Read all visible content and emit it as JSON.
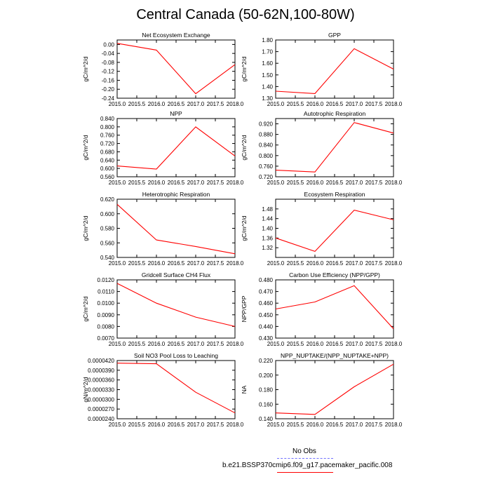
{
  "figure": {
    "title": "Central Canada (50-62N,100-80W)"
  },
  "legend": {
    "obs_label": "No Obs",
    "model_label": "b.e21.BSSP370cmip6.f09_g17.pacemaker_pacific.008",
    "obs_color": "#7070ff",
    "model_color": "#ff0000"
  },
  "chart_data": [
    {
      "type": "line",
      "title": "Net Ecosystem Exchange",
      "ylabel": "gC/m^2/d",
      "x": [
        2015.0,
        2016.0,
        2017.0,
        2018.0
      ],
      "values": [
        0.005,
        -0.025,
        -0.22,
        -0.09
      ],
      "xlim": [
        2015.0,
        2018.0
      ],
      "ylim": [
        -0.24,
        0.02
      ],
      "yticks": [
        "0.00",
        "-0.04",
        "-0.08",
        "-0.12",
        "-0.16",
        "-0.20",
        "-0.24"
      ],
      "ytick_values": [
        0.0,
        -0.04,
        -0.08,
        -0.12,
        -0.16,
        -0.2,
        -0.24
      ]
    },
    {
      "type": "line",
      "title": "GPP",
      "ylabel": "gC/m^2/d",
      "x": [
        2015.0,
        2016.0,
        2017.0,
        2018.0
      ],
      "values": [
        1.36,
        1.34,
        1.725,
        1.55
      ],
      "xlim": [
        2015.0,
        2018.0
      ],
      "ylim": [
        1.3,
        1.8
      ],
      "yticks": [
        "1.80",
        "1.70",
        "1.60",
        "1.50",
        "1.40",
        "1.30"
      ],
      "ytick_values": [
        1.8,
        1.7,
        1.6,
        1.5,
        1.4,
        1.3
      ]
    },
    {
      "type": "line",
      "title": "NPP",
      "ylabel": "gC/m^2/d",
      "x": [
        2015.0,
        2016.0,
        2017.0,
        2018.0
      ],
      "values": [
        0.612,
        0.597,
        0.8,
        0.66
      ],
      "xlim": [
        2015.0,
        2018.0
      ],
      "ylim": [
        0.56,
        0.84
      ],
      "yticks": [
        "0.840",
        "0.800",
        "0.760",
        "0.720",
        "0.680",
        "0.640",
        "0.600",
        "0.560"
      ],
      "ytick_values": [
        0.84,
        0.8,
        0.76,
        0.72,
        0.68,
        0.64,
        0.6,
        0.56
      ]
    },
    {
      "type": "line",
      "title": "Autotrophic Respiration",
      "ylabel": "gC/m^2/d",
      "x": [
        2015.0,
        2016.0,
        2017.0,
        2018.0
      ],
      "values": [
        0.745,
        0.738,
        0.925,
        0.885
      ],
      "xlim": [
        2015.0,
        2018.0
      ],
      "ylim": [
        0.72,
        0.94
      ],
      "yticks": [
        "0.920",
        "0.880",
        "0.840",
        "0.800",
        "0.760",
        "0.720"
      ],
      "ytick_values": [
        0.92,
        0.88,
        0.84,
        0.8,
        0.76,
        0.72
      ]
    },
    {
      "type": "line",
      "title": "Heterotrophic Respiration",
      "ylabel": "gC/m^2/d",
      "x": [
        2015.0,
        2016.0,
        2017.0,
        2018.0
      ],
      "values": [
        0.613,
        0.564,
        0.555,
        0.545
      ],
      "xlim": [
        2015.0,
        2018.0
      ],
      "ylim": [
        0.54,
        0.62
      ],
      "yticks": [
        "0.620",
        "0.600",
        "0.580",
        "0.560",
        "0.540"
      ],
      "ytick_values": [
        0.62,
        0.6,
        0.58,
        0.56,
        0.54
      ]
    },
    {
      "type": "line",
      "title": "Ecosystem Respiration",
      "ylabel": "gC/m^2/d",
      "x": [
        2015.0,
        2016.0,
        2017.0,
        2018.0
      ],
      "values": [
        1.36,
        1.305,
        1.475,
        1.435
      ],
      "xlim": [
        2015.0,
        2018.0
      ],
      "ylim": [
        1.28,
        1.52
      ],
      "yticks": [
        "1.48",
        "1.44",
        "1.40",
        "1.36",
        "1.32"
      ],
      "ytick_values": [
        1.48,
        1.44,
        1.4,
        1.36,
        1.32
      ]
    },
    {
      "type": "line",
      "title": "Gridcell Surface CH4 Flux",
      "ylabel": "gC/m^2/d",
      "x": [
        2015.0,
        2016.0,
        2017.0,
        2018.0
      ],
      "values": [
        0.0117,
        0.01,
        0.0088,
        0.008
      ],
      "xlim": [
        2015.0,
        2018.0
      ],
      "ylim": [
        0.007,
        0.012
      ],
      "yticks": [
        "0.0120",
        "0.0110",
        "0.0100",
        "0.0090",
        "0.0080",
        "0.0070"
      ],
      "ytick_values": [
        0.012,
        0.011,
        0.01,
        0.009,
        0.008,
        0.007
      ]
    },
    {
      "type": "line",
      "title": "Carbon Use Efficiency (NPP/GPP)",
      "ylabel": "NPP/GPP",
      "x": [
        2015.0,
        2016.0,
        2017.0,
        2018.0
      ],
      "values": [
        0.455,
        0.461,
        0.475,
        0.438
      ],
      "xlim": [
        2015.0,
        2018.0
      ],
      "ylim": [
        0.43,
        0.48
      ],
      "yticks": [
        "0.480",
        "0.470",
        "0.460",
        "0.450",
        "0.440",
        "0.430"
      ],
      "ytick_values": [
        0.48,
        0.47,
        0.46,
        0.45,
        0.44,
        0.43
      ]
    },
    {
      "type": "line",
      "title": "Soil NO3 Pool Loss to Leaching",
      "ylabel": "gN/m^2/d",
      "x": [
        2015.0,
        2016.0,
        2017.0,
        2018.0
      ],
      "values": [
        4.12e-05,
        4.1e-05,
        3.22e-05,
        2.58e-05
      ],
      "xlim": [
        2015.0,
        2018.0
      ],
      "ylim": [
        2.4e-05,
        4.2e-05
      ],
      "yticks": [
        "0.0000420",
        "0.0000390",
        "0.0000360",
        "0.0000330",
        "0.0000300",
        "0.0000270",
        "0.0000240"
      ],
      "ytick_values": [
        4.2e-05,
        3.9e-05,
        3.6e-05,
        3.3e-05,
        3e-05,
        2.7e-05,
        2.4e-05
      ]
    },
    {
      "type": "line",
      "title": "NPP_NUPTAKE/(NPP_NUPTAKE+NPP)",
      "ylabel": "NA",
      "x": [
        2015.0,
        2016.0,
        2017.0,
        2018.0
      ],
      "values": [
        0.148,
        0.146,
        0.184,
        0.215
      ],
      "xlim": [
        2015.0,
        2018.0
      ],
      "ylim": [
        0.14,
        0.22
      ],
      "yticks": [
        "0.220",
        "0.200",
        "0.180",
        "0.160",
        "0.140"
      ],
      "ytick_values": [
        0.22,
        0.2,
        0.18,
        0.16,
        0.14
      ]
    }
  ],
  "xticks": [
    "2015.0",
    "2015.5",
    "2016.0",
    "2016.5",
    "2017.0",
    "2017.5",
    "2018.0"
  ],
  "xtick_values": [
    2015.0,
    2015.5,
    2016.0,
    2016.5,
    2017.0,
    2017.5,
    2018.0
  ]
}
